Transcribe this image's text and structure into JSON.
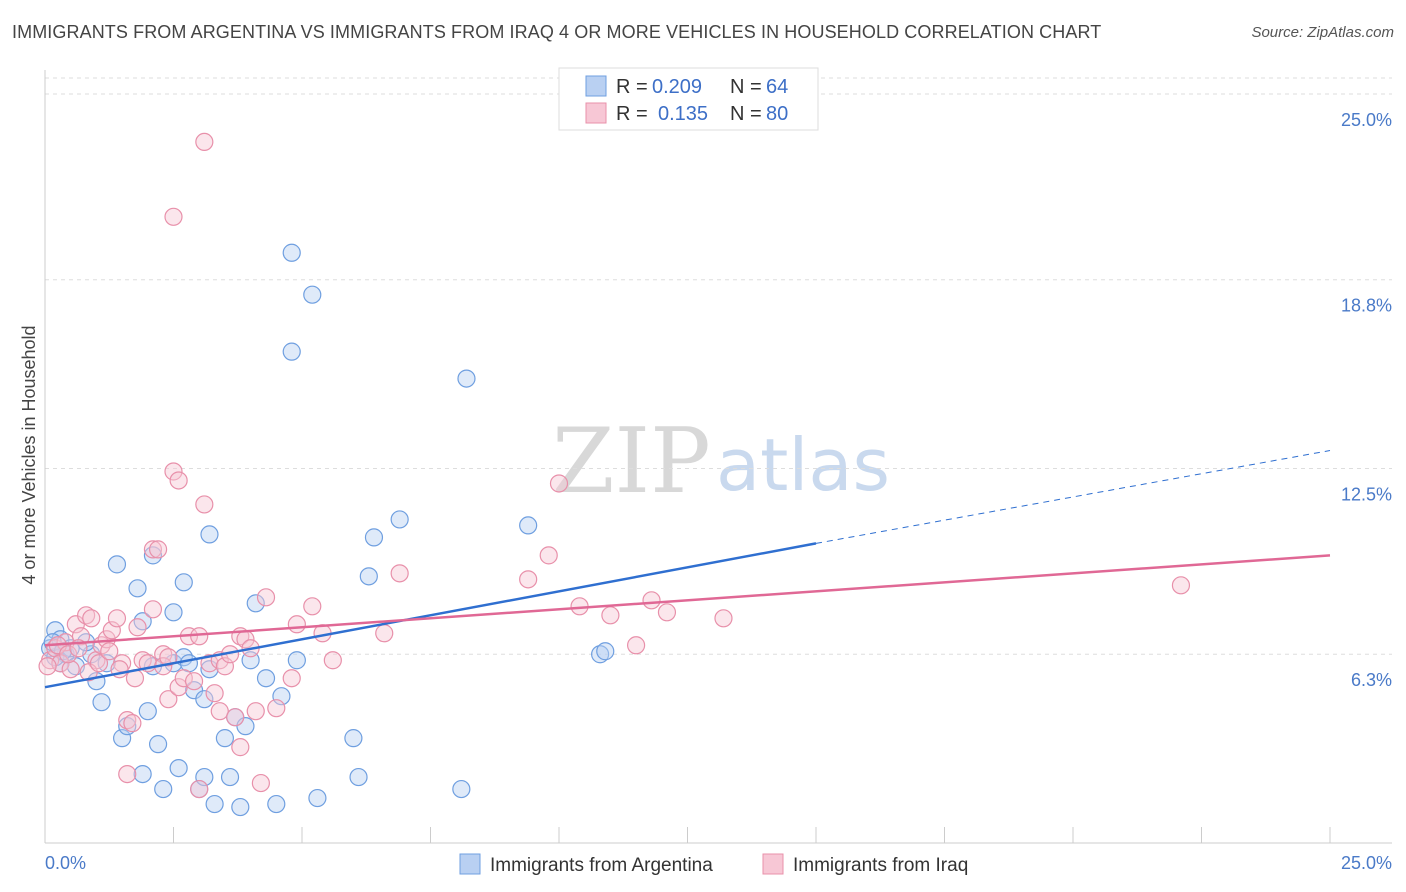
{
  "title": "IMMIGRANTS FROM ARGENTINA VS IMMIGRANTS FROM IRAQ 4 OR MORE VEHICLES IN HOUSEHOLD CORRELATION CHART",
  "source": "Source: ZipAtlas.com",
  "watermark": {
    "zip": "ZIP",
    "atlas": "atlas"
  },
  "legend": {
    "rows": [
      {
        "r_label": "R =",
        "r_value": "0.209",
        "n_label": "N =",
        "n_value": "64"
      },
      {
        "r_label": "R =",
        "r_value": "0.135",
        "n_label": "N =",
        "n_value": "80"
      }
    ]
  },
  "chart_data": {
    "type": "scatter",
    "title": "IMMIGRANTS FROM ARGENTINA VS IMMIGRANTS FROM IRAQ 4 OR MORE VEHICLES IN HOUSEHOLD CORRELATION CHART",
    "xlabel": "",
    "ylabel": "4 or more Vehicles in Household",
    "xlim": [
      0,
      25
    ],
    "ylim": [
      0,
      25.8
    ],
    "x_tick_labels": [
      "0.0%",
      "25.0%"
    ],
    "y_ticks": [
      6.3,
      12.5,
      18.8,
      25.0
    ],
    "y_tick_labels": [
      "6.3%",
      "12.5%",
      "18.8%",
      "25.0%"
    ],
    "grid": true,
    "legend_position": "top-center",
    "series": [
      {
        "name": "Immigrants from Argentina",
        "color": "#6f9fe0",
        "fill": "#b9d0f2",
        "R": 0.209,
        "N": 64,
        "trend": {
          "x0": 0,
          "y0": 5.2,
          "x1": 15,
          "y1": 10.0,
          "dashed_to_x": 25,
          "dashed_to_y": 13.1,
          "color": "#2f6fd0"
        },
        "points": [
          [
            0.1,
            6.5
          ],
          [
            0.2,
            7.1
          ],
          [
            0.3,
            6.8
          ],
          [
            0.4,
            6.3
          ],
          [
            0.5,
            6.5
          ],
          [
            0.6,
            5.9
          ],
          [
            0.3,
            6.0
          ],
          [
            0.2,
            6.2
          ],
          [
            0.9,
            6.3
          ],
          [
            1.2,
            6.0
          ],
          [
            1.0,
            5.4
          ],
          [
            1.1,
            4.7
          ],
          [
            1.4,
            9.3
          ],
          [
            1.5,
            3.5
          ],
          [
            1.6,
            3.9
          ],
          [
            1.8,
            8.5
          ],
          [
            1.9,
            2.3
          ],
          [
            1.9,
            7.4
          ],
          [
            2.0,
            4.4
          ],
          [
            2.1,
            5.9
          ],
          [
            2.1,
            9.6
          ],
          [
            2.2,
            3.3
          ],
          [
            2.3,
            1.8
          ],
          [
            2.5,
            7.7
          ],
          [
            2.5,
            6.0
          ],
          [
            2.6,
            2.5
          ],
          [
            2.7,
            8.7
          ],
          [
            2.7,
            6.2
          ],
          [
            2.8,
            6.0
          ],
          [
            2.9,
            5.1
          ],
          [
            3.0,
            1.8
          ],
          [
            3.1,
            2.2
          ],
          [
            3.1,
            4.8
          ],
          [
            3.2,
            5.8
          ],
          [
            3.2,
            10.3
          ],
          [
            3.3,
            1.3
          ],
          [
            3.5,
            3.5
          ],
          [
            3.6,
            2.2
          ],
          [
            3.7,
            4.2
          ],
          [
            3.8,
            1.2
          ],
          [
            3.9,
            3.9
          ],
          [
            4.0,
            6.1
          ],
          [
            4.1,
            8.0
          ],
          [
            4.3,
            5.5
          ],
          [
            4.5,
            1.3
          ],
          [
            4.6,
            4.9
          ],
          [
            4.8,
            19.7
          ],
          [
            4.8,
            16.4
          ],
          [
            4.9,
            6.1
          ],
          [
            5.2,
            18.3
          ],
          [
            5.3,
            1.5
          ],
          [
            6.0,
            3.5
          ],
          [
            6.1,
            2.2
          ],
          [
            6.3,
            8.9
          ],
          [
            6.4,
            10.2
          ],
          [
            6.9,
            10.8
          ],
          [
            8.1,
            1.8
          ],
          [
            8.2,
            15.5
          ],
          [
            9.4,
            10.6
          ],
          [
            10.8,
            6.3
          ],
          [
            10.9,
            6.4
          ],
          [
            0.15,
            6.7
          ],
          [
            0.35,
            6.4
          ],
          [
            0.8,
            6.7
          ]
        ]
      },
      {
        "name": "Immigrants from Iraq",
        "color": "#e890aa",
        "fill": "#f7c7d5",
        "R": 0.135,
        "N": 80,
        "trend": {
          "x0": 0,
          "y0": 6.6,
          "x1": 25,
          "y1": 9.6,
          "color": "#e06895"
        },
        "points": [
          [
            0.1,
            6.1
          ],
          [
            0.2,
            6.5
          ],
          [
            0.3,
            6.0
          ],
          [
            0.4,
            6.7
          ],
          [
            0.5,
            5.8
          ],
          [
            0.6,
            7.3
          ],
          [
            0.7,
            6.9
          ],
          [
            0.8,
            7.6
          ],
          [
            0.9,
            7.5
          ],
          [
            1.0,
            6.1
          ],
          [
            1.1,
            6.6
          ],
          [
            1.2,
            6.8
          ],
          [
            1.3,
            7.1
          ],
          [
            1.4,
            7.5
          ],
          [
            1.5,
            6.0
          ],
          [
            1.6,
            4.1
          ],
          [
            1.6,
            2.3
          ],
          [
            1.7,
            4.0
          ],
          [
            1.8,
            7.2
          ],
          [
            1.9,
            6.1
          ],
          [
            2.0,
            6.0
          ],
          [
            2.1,
            7.8
          ],
          [
            2.1,
            9.8
          ],
          [
            2.2,
            9.8
          ],
          [
            2.3,
            6.3
          ],
          [
            2.3,
            5.9
          ],
          [
            2.4,
            4.8
          ],
          [
            2.4,
            6.2
          ],
          [
            2.5,
            12.4
          ],
          [
            2.5,
            20.9
          ],
          [
            2.6,
            12.1
          ],
          [
            2.6,
            5.2
          ],
          [
            2.7,
            5.5
          ],
          [
            2.8,
            6.9
          ],
          [
            2.9,
            5.4
          ],
          [
            3.0,
            6.9
          ],
          [
            3.0,
            1.8
          ],
          [
            3.1,
            23.4
          ],
          [
            3.1,
            11.3
          ],
          [
            3.2,
            6.0
          ],
          [
            3.3,
            5.0
          ],
          [
            3.4,
            4.4
          ],
          [
            3.4,
            6.1
          ],
          [
            3.5,
            5.9
          ],
          [
            3.6,
            6.3
          ],
          [
            3.7,
            4.2
          ],
          [
            3.8,
            3.2
          ],
          [
            3.8,
            6.9
          ],
          [
            3.9,
            6.8
          ],
          [
            4.0,
            6.5
          ],
          [
            4.1,
            4.4
          ],
          [
            4.2,
            2.0
          ],
          [
            4.3,
            8.2
          ],
          [
            4.5,
            4.5
          ],
          [
            4.8,
            5.5
          ],
          [
            4.9,
            7.3
          ],
          [
            5.2,
            7.9
          ],
          [
            5.4,
            7.0
          ],
          [
            5.6,
            6.1
          ],
          [
            6.6,
            7.0
          ],
          [
            6.9,
            9.0
          ],
          [
            9.4,
            8.8
          ],
          [
            9.8,
            9.6
          ],
          [
            10.0,
            12.0
          ],
          [
            10.4,
            7.9
          ],
          [
            11.0,
            7.6
          ],
          [
            11.5,
            6.6
          ],
          [
            11.8,
            8.1
          ],
          [
            12.1,
            7.7
          ],
          [
            13.2,
            7.5
          ],
          [
            22.1,
            8.6
          ],
          [
            0.05,
            5.9
          ],
          [
            0.25,
            6.6
          ],
          [
            0.45,
            6.3
          ],
          [
            0.65,
            6.5
          ],
          [
            0.85,
            5.7
          ],
          [
            1.05,
            6.0
          ],
          [
            1.25,
            6.4
          ],
          [
            1.45,
            5.8
          ],
          [
            1.75,
            5.5
          ]
        ]
      }
    ]
  }
}
